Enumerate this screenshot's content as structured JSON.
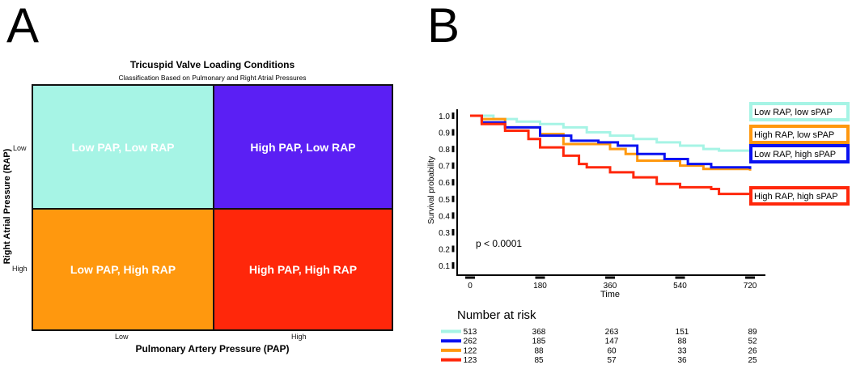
{
  "panels": {
    "a_letter": "A",
    "b_letter": "B"
  },
  "panel_a": {
    "title": "Tricuspid Valve Loading Conditions",
    "subtitle": "Classification Based on Pulmonary and Right Atrial Pressures",
    "xlabel": "Pulmonary Artery Pressure (PAP)",
    "ylabel": "Right Atrial Pressure (RAP)",
    "x_ticks": [
      "Low",
      "High"
    ],
    "y_ticks": [
      "Low",
      "High"
    ],
    "quadrants": [
      {
        "label": "Low PAP, Low RAP",
        "color": "#a6f4e5"
      },
      {
        "label": "High PAP, Low RAP",
        "color": "#5b1ff4"
      },
      {
        "label": "Low PAP, High RAP",
        "color": "#ff980e"
      },
      {
        "label": "High PAP, High RAP",
        "color": "#ff270a"
      }
    ]
  },
  "chart_data": {
    "type": "line",
    "title": "",
    "xlabel": "Time",
    "ylabel": "Survival probability",
    "xlim": [
      0,
      720
    ],
    "ylim": [
      0.1,
      1.0
    ],
    "x_ticks": [
      0,
      180,
      360,
      540,
      720
    ],
    "y_ticks": [
      "0.1",
      "0.2",
      "0.3",
      "0.4",
      "0.5",
      "0.6",
      "0.7",
      "0.8",
      "0.9",
      "1.0"
    ],
    "annotation": "p < 0.0001",
    "series": [
      {
        "name": "Low RAP, low sPAP",
        "color": "#a6f4e5",
        "points": [
          [
            0,
            1
          ],
          [
            60,
            0.98
          ],
          [
            120,
            0.965
          ],
          [
            180,
            0.95
          ],
          [
            240,
            0.93
          ],
          [
            300,
            0.9
          ],
          [
            360,
            0.88
          ],
          [
            420,
            0.86
          ],
          [
            480,
            0.84
          ],
          [
            540,
            0.82
          ],
          [
            600,
            0.8
          ],
          [
            640,
            0.79
          ],
          [
            720,
            0.78
          ]
        ]
      },
      {
        "name": "High RAP, low sPAP",
        "color": "#ff980e",
        "points": [
          [
            0,
            1
          ],
          [
            30,
            0.98
          ],
          [
            90,
            0.93
          ],
          [
            180,
            0.89
          ],
          [
            240,
            0.83
          ],
          [
            360,
            0.8
          ],
          [
            400,
            0.77
          ],
          [
            430,
            0.73
          ],
          [
            540,
            0.7
          ],
          [
            600,
            0.68
          ],
          [
            720,
            0.67
          ]
        ]
      },
      {
        "name": "Low RAP, high sPAP",
        "color": "#0a12f0",
        "points": [
          [
            0,
            1
          ],
          [
            30,
            0.96
          ],
          [
            90,
            0.93
          ],
          [
            180,
            0.88
          ],
          [
            260,
            0.85
          ],
          [
            330,
            0.84
          ],
          [
            380,
            0.82
          ],
          [
            430,
            0.77
          ],
          [
            500,
            0.74
          ],
          [
            560,
            0.71
          ],
          [
            620,
            0.69
          ],
          [
            720,
            0.68
          ]
        ]
      },
      {
        "name": "High RAP, high sPAP",
        "color": "#ff270a",
        "points": [
          [
            0,
            1
          ],
          [
            30,
            0.95
          ],
          [
            90,
            0.91
          ],
          [
            150,
            0.86
          ],
          [
            180,
            0.81
          ],
          [
            240,
            0.76
          ],
          [
            280,
            0.71
          ],
          [
            300,
            0.69
          ],
          [
            360,
            0.66
          ],
          [
            420,
            0.63
          ],
          [
            480,
            0.59
          ],
          [
            540,
            0.57
          ],
          [
            620,
            0.56
          ],
          [
            640,
            0.53
          ],
          [
            720,
            0.53
          ]
        ]
      }
    ],
    "risk_table": {
      "title": "Number at risk",
      "times": [
        0,
        180,
        360,
        540,
        720
      ],
      "rows": [
        {
          "color": "#a6f4e5",
          "values": [
            "513",
            "368",
            "263",
            "151",
            "89"
          ]
        },
        {
          "color": "#0a12f0",
          "values": [
            "262",
            "185",
            "147",
            "88",
            "52"
          ]
        },
        {
          "color": "#ff980e",
          "values": [
            "122",
            "88",
            "60",
            "33",
            "26"
          ]
        },
        {
          "color": "#ff270a",
          "values": [
            "123",
            "85",
            "57",
            "36",
            "25"
          ]
        }
      ]
    }
  }
}
